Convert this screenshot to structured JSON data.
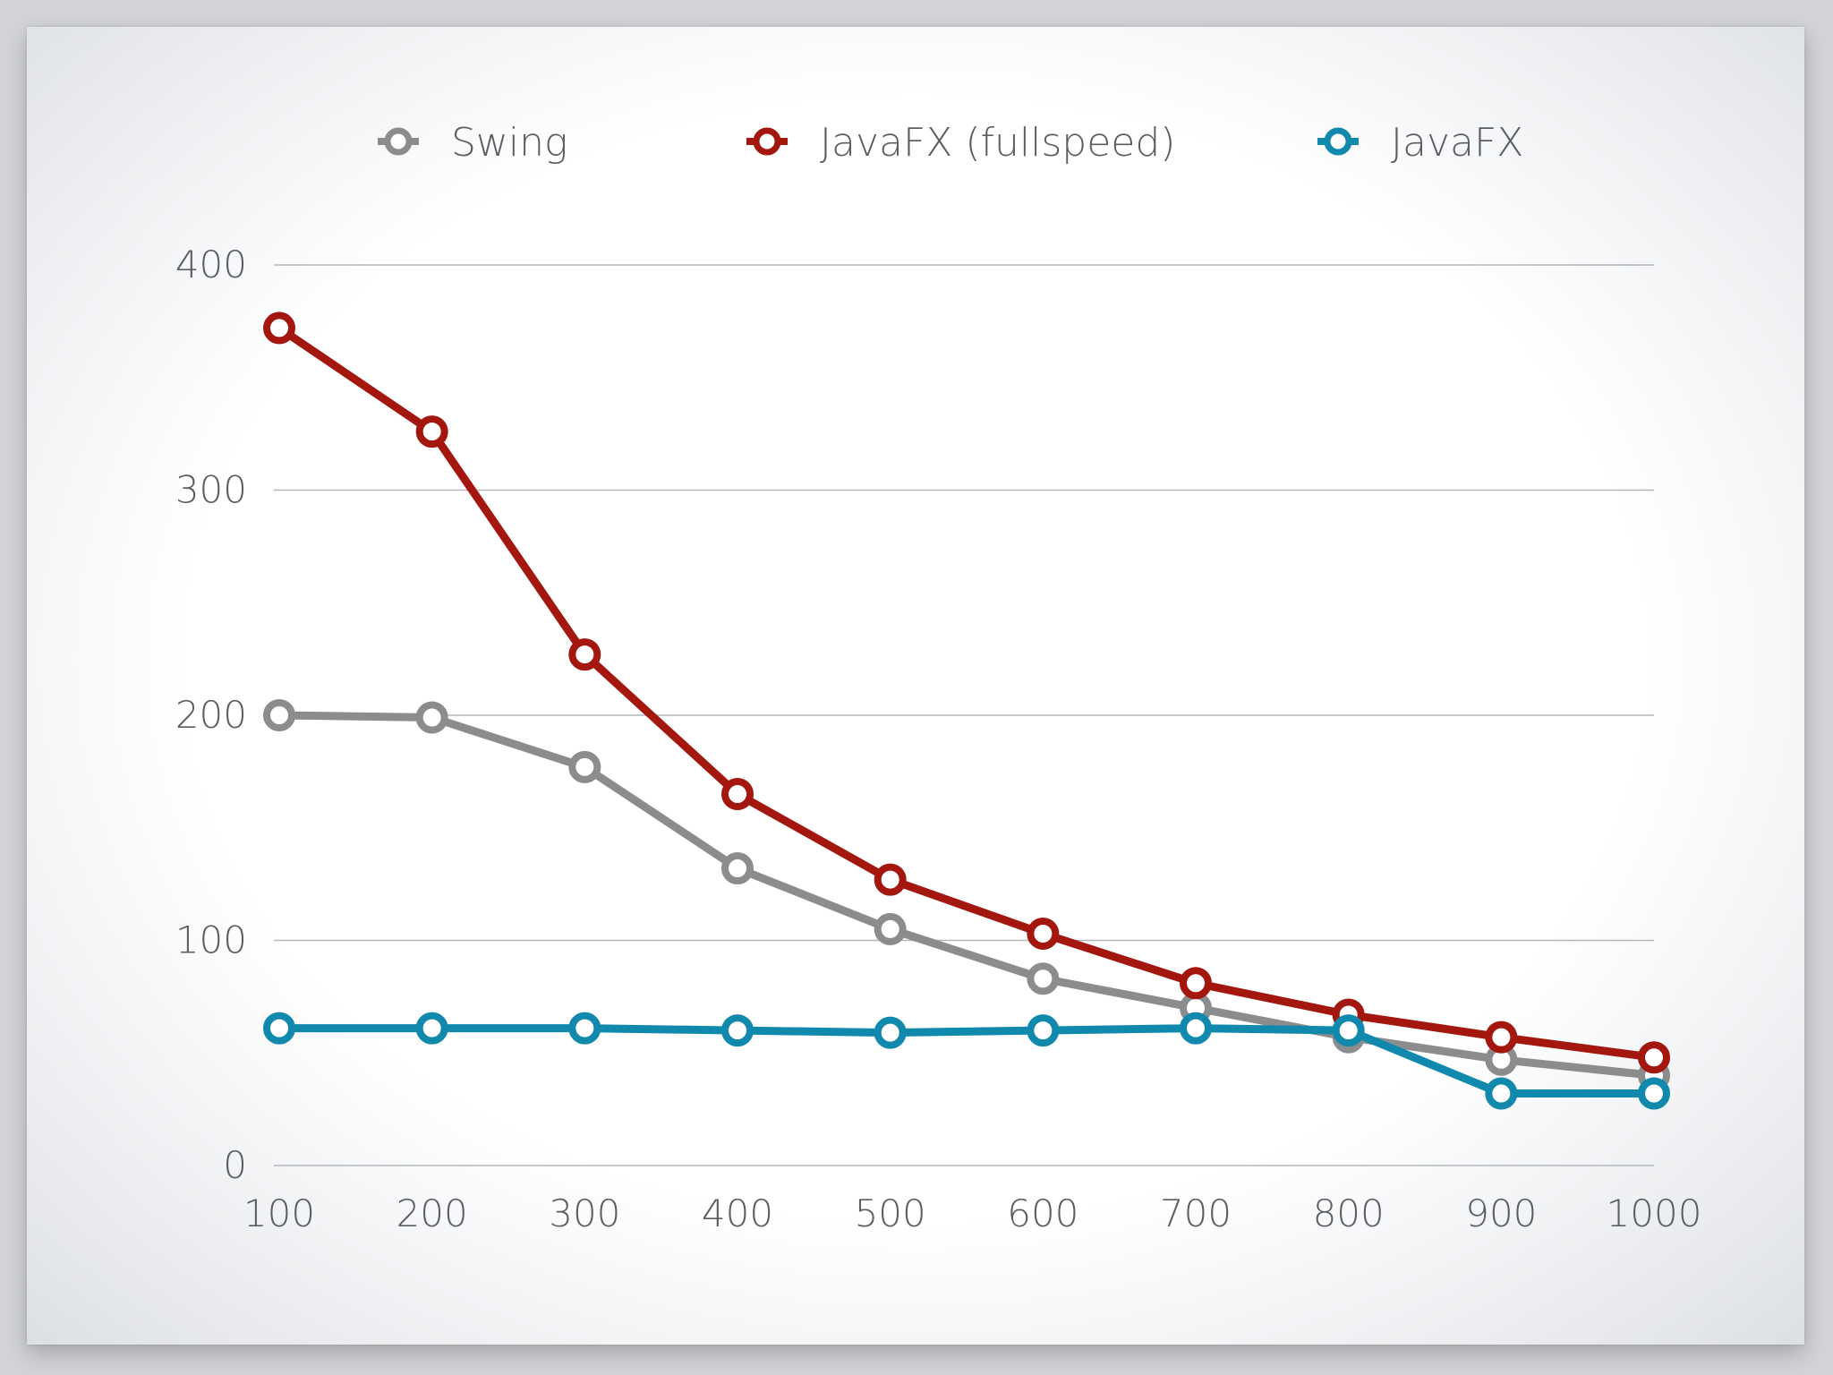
{
  "chart_data": {
    "type": "line",
    "title": "",
    "xlabel": "",
    "ylabel": "",
    "x": [
      100,
      200,
      300,
      400,
      500,
      600,
      700,
      800,
      900,
      1000
    ],
    "x_tick_labels": [
      "100",
      "200",
      "300",
      "400",
      "500",
      "600",
      "700",
      "800",
      "900",
      "1000"
    ],
    "ylim": [
      0,
      400
    ],
    "y_ticks": [
      0,
      100,
      200,
      300,
      400
    ],
    "y_tick_labels": [
      "0",
      "100",
      "200",
      "300",
      "400"
    ],
    "grid": "horizontal",
    "legend_position": "top",
    "series": [
      {
        "name": "Swing",
        "color": "#8a8c8e",
        "values": [
          200,
          199,
          177,
          132,
          105,
          83,
          70,
          57,
          47,
          40
        ]
      },
      {
        "name": "JavaFX (fullspeed)",
        "color": "#a3170f",
        "values": [
          372,
          326,
          227,
          165,
          127,
          103,
          81,
          67,
          57,
          48
        ]
      },
      {
        "name": "JavaFX",
        "color": "#1189ad",
        "values": [
          61,
          61,
          61,
          60,
          59,
          60,
          61,
          60,
          32,
          32
        ]
      }
    ]
  }
}
